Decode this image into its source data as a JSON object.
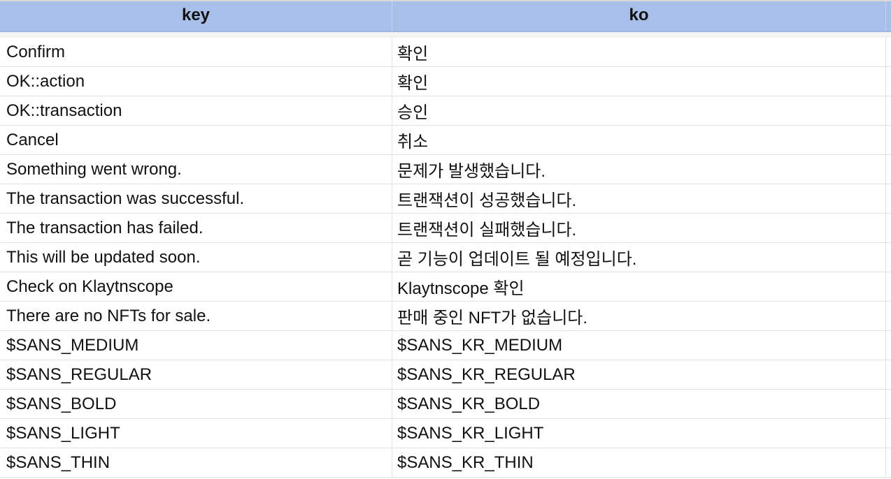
{
  "table": {
    "headers": {
      "key": "key",
      "ko": "ko"
    },
    "rows": [
      {
        "key": "Confirm",
        "ko": "확인"
      },
      {
        "key": "OK::action",
        "ko": "확인"
      },
      {
        "key": "OK::transaction",
        "ko": "승인"
      },
      {
        "key": "Cancel",
        "ko": "취소"
      },
      {
        "key": "Something went wrong.",
        "ko": "문제가 발생했습니다."
      },
      {
        "key": "The transaction was successful.",
        "ko": "트랜잭션이 성공했습니다."
      },
      {
        "key": "The transaction has failed.",
        "ko": "트랜잭션이 실패했습니다."
      },
      {
        "key": "This will be updated soon.",
        "ko": "곧 기능이 업데이트 될 예정입니다."
      },
      {
        "key": "Check on Klaytnscope",
        "ko": "Klaytnscope 확인"
      },
      {
        "key": "There are no NFTs for sale.",
        "ko": "판매 중인 NFT가 없습니다."
      },
      {
        "key": "$SANS_MEDIUM",
        "ko": "$SANS_KR_MEDIUM"
      },
      {
        "key": "$SANS_REGULAR",
        "ko": "$SANS_KR_REGULAR"
      },
      {
        "key": "$SANS_BOLD",
        "ko": "$SANS_KR_BOLD"
      },
      {
        "key": "$SANS_LIGHT",
        "ko": "$SANS_KR_LIGHT"
      },
      {
        "key": "$SANS_THIN",
        "ko": "$SANS_KR_THIN"
      }
    ]
  },
  "colors": {
    "header_bg": "#a7bfe9",
    "grid_line": "#e2e2e2",
    "text": "#111111"
  }
}
